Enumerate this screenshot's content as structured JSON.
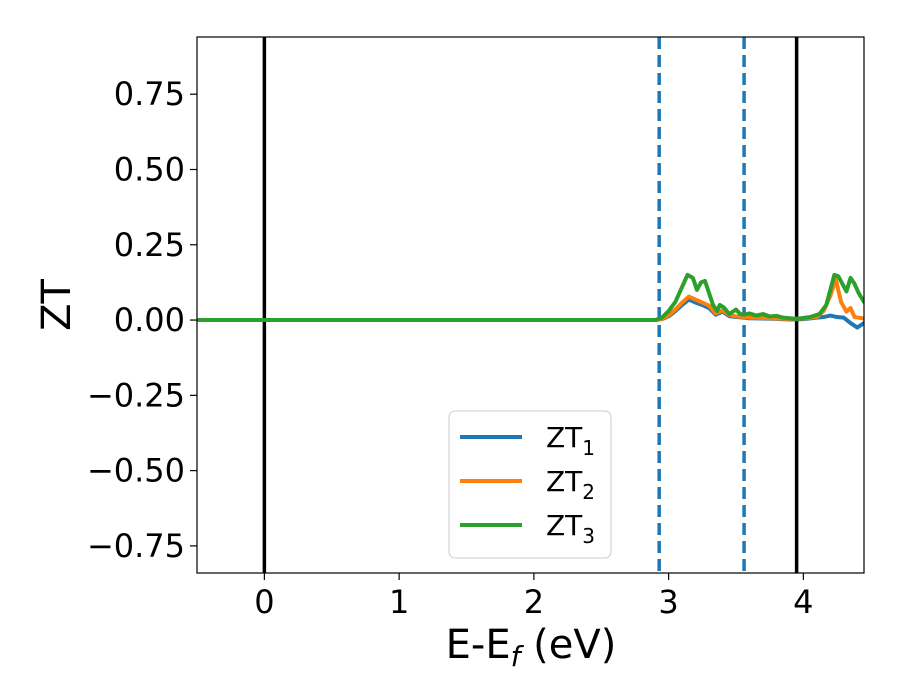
{
  "chart_data": {
    "type": "line",
    "xlabel_main": "E-E",
    "xlabel_sub": "f",
    "xlabel_unit": " (eV)",
    "ylabel": "ZT",
    "xlim": [
      -0.5,
      4.45
    ],
    "ylim": [
      -0.84,
      0.94
    ],
    "xticks": [
      0,
      1,
      2,
      3,
      4
    ],
    "xtick_labels": [
      "0",
      "1",
      "2",
      "3",
      "4"
    ],
    "yticks": [
      -0.75,
      -0.5,
      -0.25,
      0.0,
      0.25,
      0.5,
      0.75
    ],
    "ytick_labels": [
      "−0.75",
      "−0.50",
      "−0.25",
      "0.00",
      "0.25",
      "0.50",
      "0.75"
    ],
    "vlines_solid": [
      0.0,
      3.95
    ],
    "vlines_dashed": [
      2.93,
      3.56
    ],
    "legend_position": "lower-center",
    "series": [
      {
        "name_main": "ZT",
        "name_sub": "1",
        "color": "#1f77b4",
        "points": [
          [
            -0.5,
            0
          ],
          [
            2.9,
            0
          ],
          [
            2.95,
            0.003
          ],
          [
            3.0,
            0.012
          ],
          [
            3.05,
            0.03
          ],
          [
            3.1,
            0.05
          ],
          [
            3.15,
            0.068
          ],
          [
            3.2,
            0.058
          ],
          [
            3.25,
            0.05
          ],
          [
            3.3,
            0.04
          ],
          [
            3.35,
            0.018
          ],
          [
            3.4,
            0.028
          ],
          [
            3.45,
            0.013
          ],
          [
            3.5,
            0.01
          ],
          [
            3.56,
            0.008
          ],
          [
            3.6,
            0.006
          ],
          [
            3.7,
            0.005
          ],
          [
            3.8,
            0.004
          ],
          [
            3.9,
            0.002
          ],
          [
            4.0,
            0.003
          ],
          [
            4.1,
            0.008
          ],
          [
            4.15,
            0.01
          ],
          [
            4.2,
            0.015
          ],
          [
            4.25,
            0.01
          ],
          [
            4.3,
            0.008
          ],
          [
            4.35,
            -0.01
          ],
          [
            4.4,
            -0.025
          ],
          [
            4.45,
            -0.01
          ]
        ]
      },
      {
        "name_main": "ZT",
        "name_sub": "2",
        "color": "#ff7f0e",
        "points": [
          [
            -0.5,
            0
          ],
          [
            2.9,
            0
          ],
          [
            2.95,
            0.004
          ],
          [
            3.0,
            0.015
          ],
          [
            3.05,
            0.035
          ],
          [
            3.1,
            0.058
          ],
          [
            3.15,
            0.078
          ],
          [
            3.2,
            0.068
          ],
          [
            3.25,
            0.058
          ],
          [
            3.3,
            0.048
          ],
          [
            3.35,
            0.022
          ],
          [
            3.4,
            0.032
          ],
          [
            3.45,
            0.017
          ],
          [
            3.5,
            0.012
          ],
          [
            3.56,
            0.01
          ],
          [
            3.6,
            0.008
          ],
          [
            3.7,
            0.007
          ],
          [
            3.8,
            0.005
          ],
          [
            3.9,
            0.004
          ],
          [
            4.0,
            0.005
          ],
          [
            4.1,
            0.01
          ],
          [
            4.15,
            0.03
          ],
          [
            4.2,
            0.08
          ],
          [
            4.24,
            0.135
          ],
          [
            4.28,
            0.06
          ],
          [
            4.32,
            0.028
          ],
          [
            4.35,
            0.04
          ],
          [
            4.38,
            0.01
          ],
          [
            4.45,
            0.005
          ]
        ]
      },
      {
        "name_main": "ZT",
        "name_sub": "3",
        "color": "#2ca02c",
        "points": [
          [
            -0.5,
            0
          ],
          [
            2.9,
            0
          ],
          [
            2.95,
            0.008
          ],
          [
            3.0,
            0.03
          ],
          [
            3.05,
            0.06
          ],
          [
            3.1,
            0.11
          ],
          [
            3.14,
            0.15
          ],
          [
            3.18,
            0.14
          ],
          [
            3.21,
            0.1
          ],
          [
            3.24,
            0.125
          ],
          [
            3.27,
            0.13
          ],
          [
            3.3,
            0.09
          ],
          [
            3.33,
            0.05
          ],
          [
            3.36,
            0.03
          ],
          [
            3.38,
            0.05
          ],
          [
            3.41,
            0.042
          ],
          [
            3.45,
            0.02
          ],
          [
            3.5,
            0.035
          ],
          [
            3.53,
            0.02
          ],
          [
            3.56,
            0.018
          ],
          [
            3.6,
            0.022
          ],
          [
            3.65,
            0.015
          ],
          [
            3.7,
            0.02
          ],
          [
            3.75,
            0.012
          ],
          [
            3.8,
            0.014
          ],
          [
            3.85,
            0.008
          ],
          [
            3.9,
            0.006
          ],
          [
            3.95,
            0.004
          ],
          [
            4.05,
            0.01
          ],
          [
            4.12,
            0.02
          ],
          [
            4.17,
            0.05
          ],
          [
            4.2,
            0.1
          ],
          [
            4.23,
            0.15
          ],
          [
            4.26,
            0.145
          ],
          [
            4.29,
            0.12
          ],
          [
            4.32,
            0.095
          ],
          [
            4.35,
            0.14
          ],
          [
            4.38,
            0.12
          ],
          [
            4.41,
            0.09
          ],
          [
            4.45,
            0.06
          ]
        ]
      }
    ]
  }
}
